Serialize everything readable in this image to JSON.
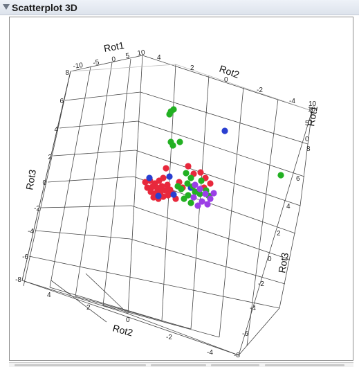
{
  "panel": {
    "title": "Scatterplot 3D"
  },
  "axes": {
    "rot1": {
      "title": "Rot1",
      "ticks": [
        "-10",
        "-5",
        "0",
        "5",
        "10"
      ],
      "right_title": "Rot1",
      "right_ticks": [
        "10",
        "5",
        "0"
      ]
    },
    "rot2": {
      "title": "Rot2",
      "top_title": "Rot2",
      "ticks": [
        "4",
        "2",
        "0",
        "-2",
        "-4"
      ],
      "top_ticks": [
        "4",
        "2",
        "0",
        "-2",
        "-4"
      ]
    },
    "rot3": {
      "title": "Rot3",
      "ticks": [
        "8",
        "6",
        "4",
        "2",
        "0",
        "-2",
        "-4",
        "-6",
        "-8"
      ],
      "right_title": "Rot3",
      "right_ticks": [
        "10",
        "8",
        "6",
        "4",
        "2",
        "0",
        "-2",
        "-4",
        "-6",
        "-8"
      ]
    }
  },
  "colors": {
    "red": "#e8283c",
    "blue": "#2a3fd0",
    "green": "#22b022",
    "purple": "#9b3fe6",
    "grid": "#444444"
  }
}
